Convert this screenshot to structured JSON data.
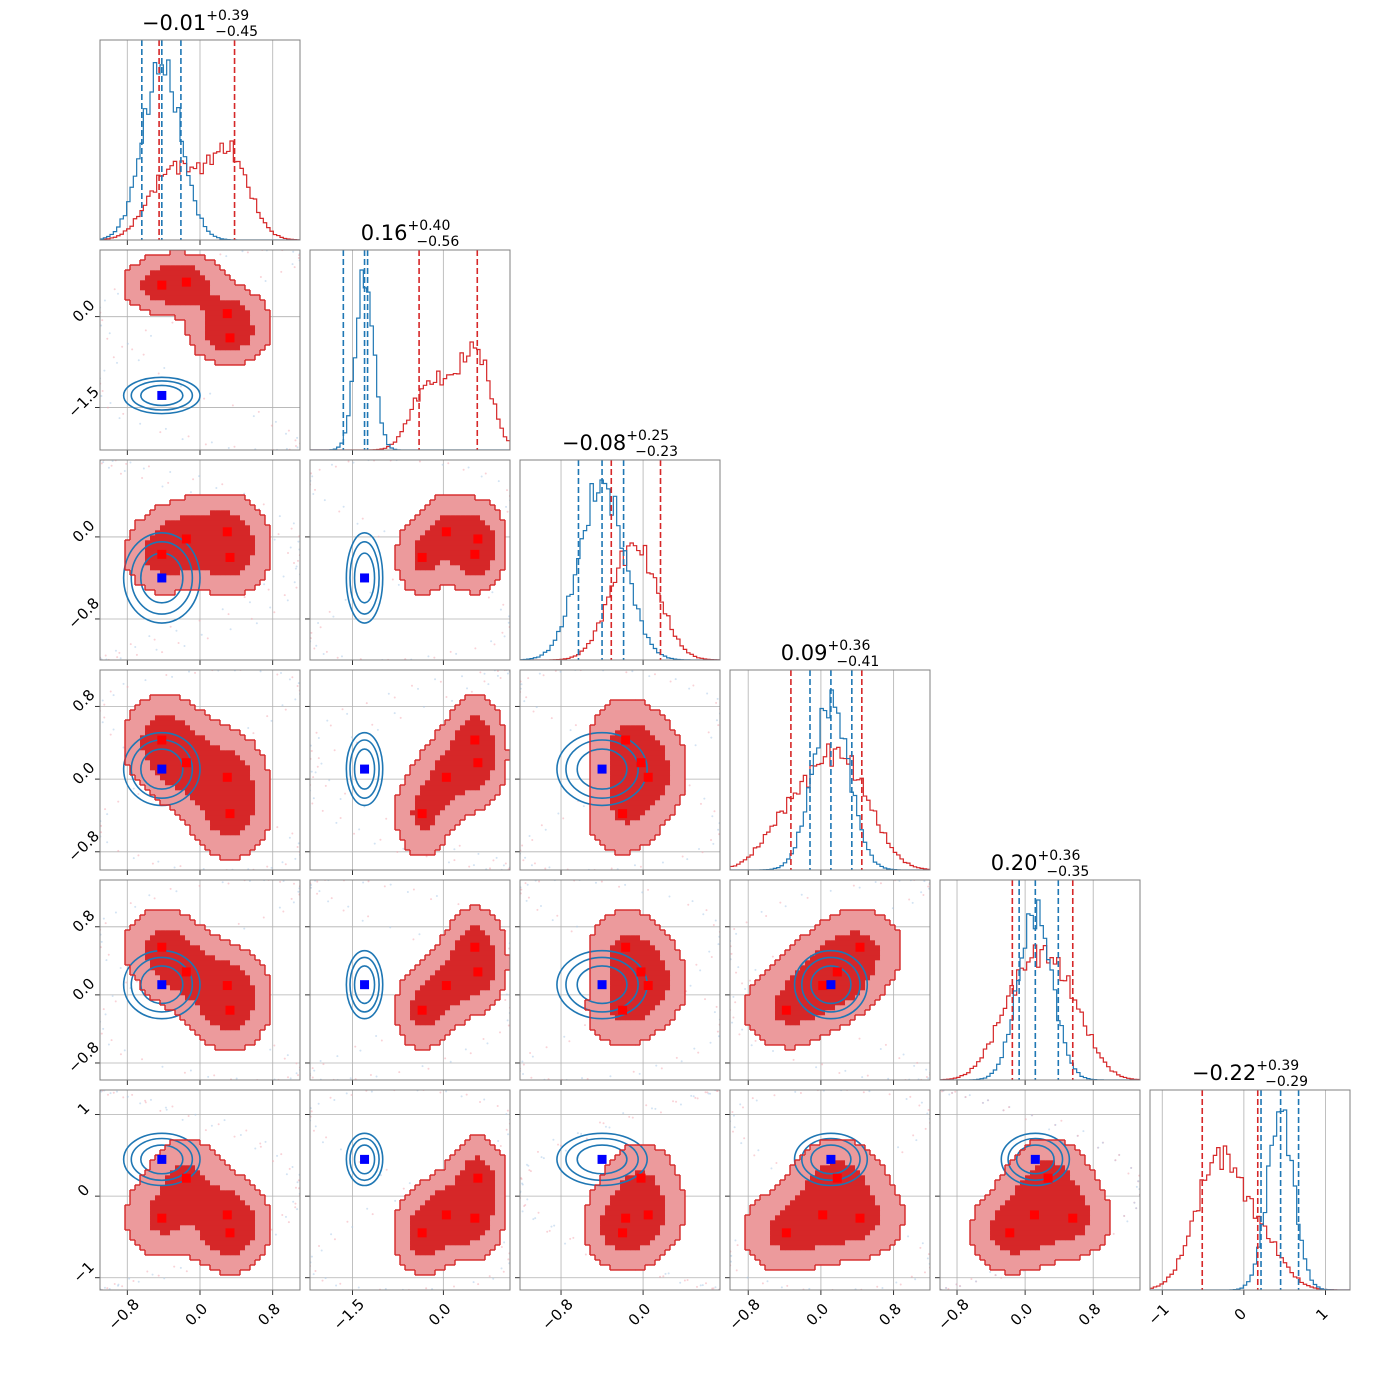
{
  "chart_data": {
    "type": "corner",
    "colors": {
      "posterior_a": "#d62728",
      "posterior_b": "#1f77b4",
      "truth_a": "#ff0000",
      "truth_b": "#0000ff",
      "grid": "#b0b0b0"
    },
    "parameters": [
      {
        "range": [
          -1.1,
          1.1
        ],
        "ticks": [
          -0.8,
          0.0,
          0.8
        ],
        "tick_labels": [
          "−0.8",
          "0.0",
          "0.8"
        ],
        "title_median": "−0.01",
        "title_plus": "+0.39",
        "title_minus": "−0.45",
        "quantiles_a": [
          -0.45,
          0.38
        ],
        "quantiles_b": [
          -0.64,
          -0.21
        ],
        "median_b": -0.42
      },
      {
        "range": [
          -2.2,
          1.1
        ],
        "ticks": [
          -1.5,
          0.0
        ],
        "tick_labels": [
          "−1.5",
          "0.0"
        ],
        "title_median": "0.16",
        "title_plus": "+0.40",
        "title_minus": "−0.56",
        "quantiles_a": [
          -0.4,
          0.56
        ],
        "quantiles_b": [
          -1.65,
          -1.25
        ],
        "median_b": -1.3
      },
      {
        "range": [
          -1.2,
          0.75
        ],
        "ticks": [
          -0.8,
          0.0
        ],
        "tick_labels": [
          "−0.8",
          "0.0"
        ],
        "title_median": "−0.08",
        "title_plus": "+0.25",
        "title_minus": "−0.23",
        "quantiles_a": [
          -0.31,
          0.17
        ],
        "quantiles_b": [
          -0.63,
          -0.19
        ],
        "median_b": -0.4
      },
      {
        "range": [
          -1.0,
          1.2
        ],
        "ticks": [
          -0.8,
          0.0,
          0.8
        ],
        "tick_labels": [
          "−0.8",
          "0.0",
          "0.8"
        ],
        "title_median": "0.09",
        "title_plus": "+0.36",
        "title_minus": "−0.41",
        "quantiles_a": [
          -0.33,
          0.45
        ],
        "quantiles_b": [
          -0.12,
          0.34
        ],
        "median_b": 0.11
      },
      {
        "range": [
          -1.0,
          1.35
        ],
        "ticks": [
          -0.8,
          0.0,
          0.8
        ],
        "tick_labels": [
          "−0.8",
          "0.0",
          "0.8"
        ],
        "title_median": "0.20",
        "title_plus": "+0.36",
        "title_minus": "−0.35",
        "quantiles_a": [
          -0.15,
          0.56
        ],
        "quantiles_b": [
          -0.07,
          0.39
        ],
        "median_b": 0.12
      },
      {
        "range": [
          -1.15,
          1.3
        ],
        "ticks": [
          -1,
          0,
          1
        ],
        "tick_labels": [
          "−1",
          "0",
          "1"
        ],
        "title_median": "−0.22",
        "title_plus": "+0.39",
        "title_minus": "−0.29",
        "quantiles_a": [
          -0.51,
          0.17
        ],
        "quantiles_b": [
          0.21,
          0.67
        ],
        "median_b": 0.45
      }
    ],
    "truth_b": [
      -0.42,
      -1.3,
      -0.4,
      0.11,
      0.12,
      0.45
    ],
    "truth_a_modes": [
      [
        -0.42,
        0.52,
        -0.17,
        0.43,
        0.56,
        -0.27
      ],
      [
        -0.15,
        0.57,
        -0.02,
        0.18,
        0.27,
        0.22
      ],
      [
        0.3,
        0.05,
        0.05,
        0.02,
        0.11,
        -0.23
      ],
      [
        0.33,
        -0.35,
        -0.2,
        -0.38,
        -0.18,
        -0.45
      ]
    ],
    "modes_a_sd": [
      0.22,
      0.24,
      0.2,
      0.26,
      0.25,
      0.26
    ],
    "mode_b_sd": [
      0.21,
      0.15,
      0.22,
      0.2,
      0.2,
      0.16
    ]
  }
}
